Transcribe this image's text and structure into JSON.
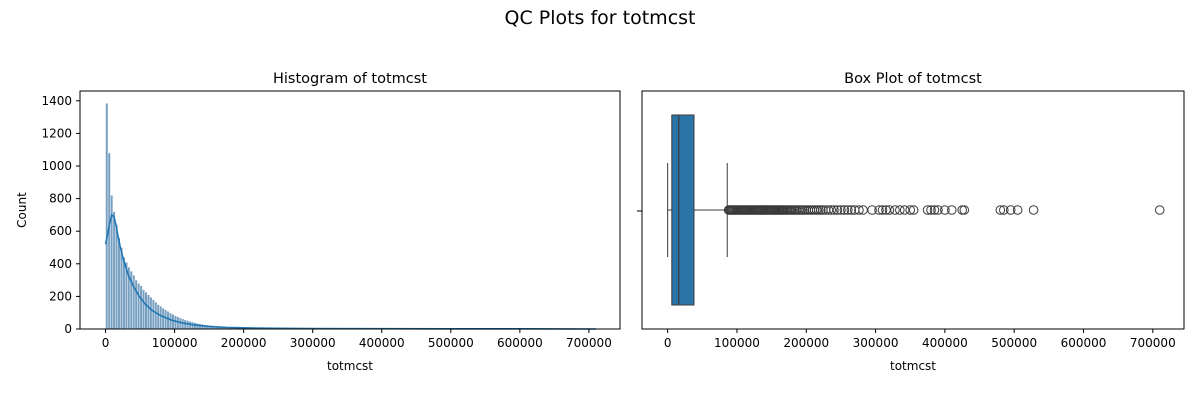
{
  "figure": {
    "suptitle": "QC Plots for totmcst"
  },
  "chart_data": [
    {
      "type": "histogram",
      "title": "Histogram of totmcst",
      "xlabel": "totmcst",
      "ylabel": "Count",
      "xlim": [
        -37000,
        745000
      ],
      "ylim": [
        0,
        1460
      ],
      "xticks": [
        0,
        100000,
        200000,
        300000,
        400000,
        500000,
        600000,
        700000
      ],
      "yticks": [
        0,
        200,
        400,
        600,
        800,
        1000,
        1200,
        1400
      ],
      "bin_width": 3550,
      "bin_start": 0,
      "counts": [
        1385,
        1080,
        820,
        720,
        640,
        560,
        500,
        440,
        410,
        380,
        355,
        330,
        300,
        280,
        265,
        240,
        225,
        210,
        195,
        180,
        165,
        150,
        140,
        128,
        118,
        108,
        98,
        90,
        82,
        75,
        68,
        62,
        57,
        52,
        47,
        43,
        39,
        35,
        32,
        29,
        26,
        24,
        22,
        20,
        18,
        16,
        15,
        14,
        13,
        12,
        11,
        10,
        10,
        9,
        9,
        8,
        8,
        7,
        7,
        6
      ],
      "kde": {
        "x": [
          0,
          3000,
          6000,
          9000,
          12000,
          15000,
          18000,
          22000,
          27000,
          33000,
          40000,
          48000,
          57000,
          67000,
          80000,
          95000,
          110000,
          130000,
          150000,
          175000,
          200000,
          250000,
          300000,
          400000,
          500000,
          600000,
          710000
        ],
        "y": [
          520,
          580,
          650,
          700,
          690,
          640,
          570,
          490,
          410,
          330,
          265,
          205,
          155,
          115,
          82,
          55,
          38,
          24,
          16,
          10,
          7,
          4,
          3,
          2,
          1,
          1,
          0
        ]
      },
      "color": "#4a7fac",
      "line_color": "#1f77b4"
    },
    {
      "type": "boxplot",
      "title": "Box Plot of totmcst",
      "xlabel": "totmcst",
      "xlim": [
        -37000,
        745000
      ],
      "xticks": [
        0,
        100000,
        200000,
        300000,
        400000,
        500000,
        600000,
        700000
      ],
      "whislo": 0,
      "q1": 6000,
      "median": 16000,
      "q3": 38000,
      "whishi": 86000,
      "fliers": [
        88000,
        89500,
        91000,
        92500,
        94000,
        95500,
        97000,
        98500,
        100000,
        101500,
        103000,
        104500,
        106000,
        107500,
        109000,
        110500,
        112000,
        113500,
        115000,
        116500,
        118000,
        119500,
        121000,
        122500,
        124000,
        125500,
        127000,
        128500,
        130000,
        131500,
        133000,
        134500,
        136000,
        137500,
        139000,
        140500,
        142000,
        143500,
        145000,
        146500,
        148000,
        149500,
        151000,
        152500,
        154000,
        155500,
        157000,
        158500,
        160000,
        161500,
        163000,
        164500,
        166000,
        167500,
        169000,
        171000,
        173000,
        175000,
        177000,
        179000,
        181000,
        183000,
        185000,
        187500,
        190000,
        192500,
        195000,
        197500,
        200000,
        203000,
        206000,
        209000,
        212000,
        215000,
        218000,
        221000,
        224000,
        228000,
        232000,
        236000,
        240000,
        245000,
        250000,
        255000,
        260000,
        265000,
        270000,
        276000,
        282000,
        295000,
        305000,
        310000,
        315000,
        320000,
        328000,
        335000,
        342000,
        350000,
        355000,
        375000,
        380000,
        385000,
        390000,
        400000,
        410000,
        425000,
        428000,
        480000,
        485000,
        495000,
        505000,
        528000,
        710000
      ],
      "box_color": "#2a74a8"
    }
  ]
}
